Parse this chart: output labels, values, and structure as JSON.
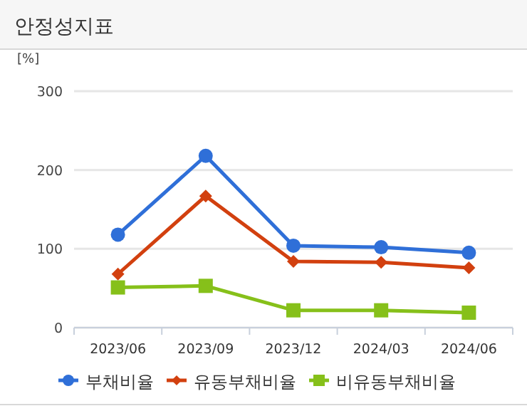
{
  "chart_data": {
    "type": "line",
    "title": "안정성지표",
    "ylabel": "[%]",
    "categories": [
      "2023/06",
      "2023/09",
      "2023/12",
      "2024/03",
      "2024/06"
    ],
    "series": [
      {
        "name": "부채비율",
        "color": "#2f6fd8",
        "marker": "circle",
        "values": [
          118,
          218,
          104,
          102,
          95
        ]
      },
      {
        "name": "유동부채비율",
        "color": "#d2400f",
        "marker": "diamond",
        "values": [
          68,
          167,
          84,
          83,
          76
        ]
      },
      {
        "name": "비유동부채비율",
        "color": "#86c01a",
        "marker": "square",
        "values": [
          51,
          53,
          22,
          22,
          19
        ]
      }
    ],
    "ylim": [
      0,
      300
    ],
    "yticks": [
      0,
      100,
      200,
      300
    ],
    "grid": "y",
    "legend": "bottom"
  }
}
